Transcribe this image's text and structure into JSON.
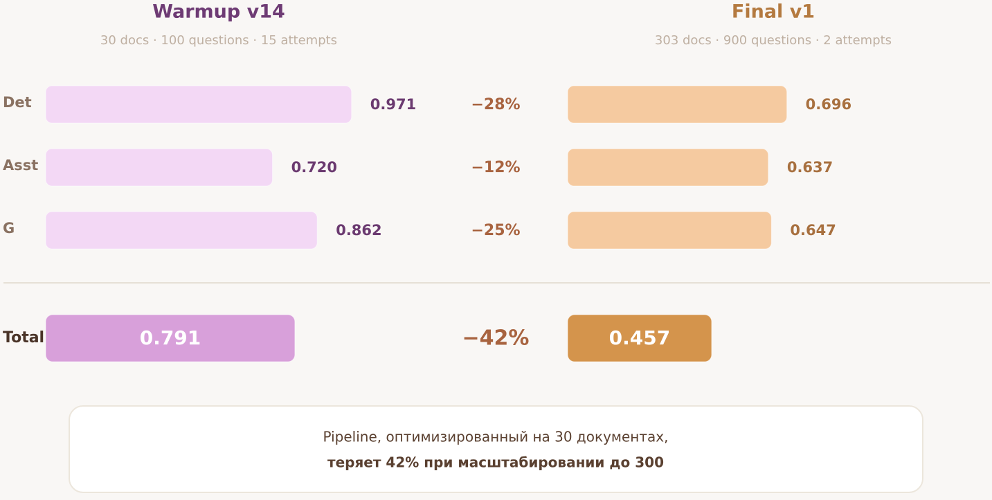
{
  "chart_data": {
    "type": "bar",
    "orientation": "horizontal",
    "categories": [
      "Det",
      "Asst",
      "G"
    ],
    "series": [
      {
        "name": "Warmup v14",
        "subtitle": "30 docs · 100 questions · 15 attempts",
        "color": "#f3d8f5",
        "label_color": "#6b3a70",
        "title_color": "#6e3b74",
        "values": [
          0.971,
          0.72,
          0.862
        ],
        "value_labels": [
          "0.971",
          "0.720",
          "0.862"
        ],
        "total": 0.791,
        "total_color": "#d8a0da"
      },
      {
        "name": "Final v1",
        "subtitle": "303 docs · 900 questions · 2 attempts",
        "color": "#f5caa0",
        "label_color": "#a8703f",
        "title_color": "#b47a40",
        "values": [
          0.696,
          0.637,
          0.647
        ],
        "total": 0.457,
        "total_color": "#d4944c"
      }
    ],
    "total_label": "Total",
    "change": {
      "values": [
        -28,
        -12,
        -25
      ],
      "value_labels": [
        "−28%",
        "−12%",
        "−25%"
      ],
      "total": -42,
      "total_label": "−42%",
      "color": "#a8633f"
    }
  },
  "note": {
    "line1": "Pipeline, оптимизированный на 30 документах,",
    "line2": "теряет 42% при масштабировании до 300"
  }
}
